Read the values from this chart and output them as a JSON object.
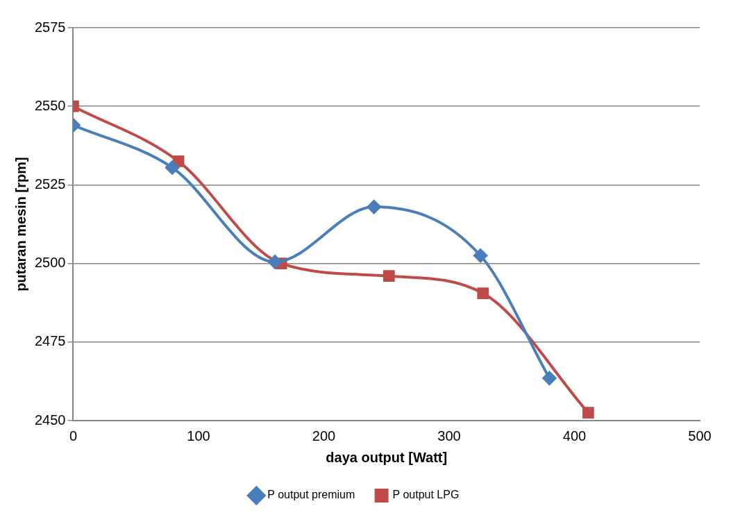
{
  "chart_data": {
    "type": "line",
    "xlabel": "daya output [Watt]",
    "ylabel": "putaran mesin [rpm]",
    "xlim": [
      0,
      500
    ],
    "xticks": [
      0,
      100,
      200,
      300,
      400,
      500
    ],
    "ylim": [
      2450,
      2575
    ],
    "yticks": [
      2450,
      2475,
      2500,
      2525,
      2550,
      2575
    ],
    "grid": "y",
    "legend": "bottom",
    "series": [
      {
        "name": "P output premium",
        "color": "#4a7ebb",
        "marker": "diamond",
        "x": [
          0,
          79,
          161,
          240,
          325,
          380
        ],
        "values": [
          2544,
          2530.5,
          2500.5,
          2518,
          2502.5,
          2463.5
        ]
      },
      {
        "name": "P output LPG",
        "color": "#be4b48",
        "marker": "square",
        "x": [
          0,
          84,
          166,
          252,
          327,
          411
        ],
        "values": [
          2550,
          2532.5,
          2500,
          2496,
          2490.5,
          2452.5
        ]
      }
    ]
  }
}
